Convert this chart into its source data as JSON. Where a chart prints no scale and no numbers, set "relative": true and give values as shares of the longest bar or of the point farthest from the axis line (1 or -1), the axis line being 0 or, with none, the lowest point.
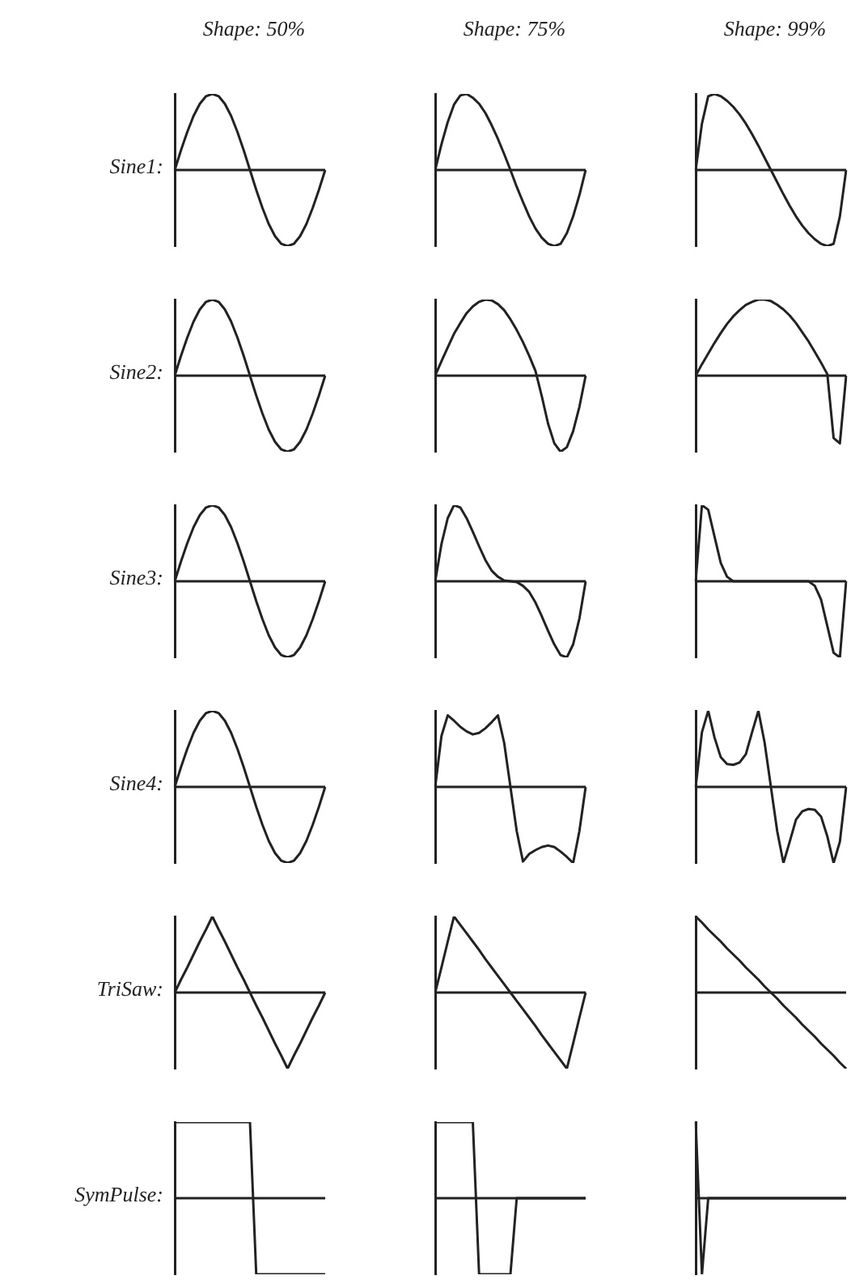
{
  "chart_data": [
    {
      "type": "line",
      "relative": true,
      "title": "Shape: 50%",
      "ylabel": "Sine1:",
      "color": "#222222",
      "categories": [
        null,
        null,
        null,
        null,
        null,
        null,
        null,
        null,
        null,
        null,
        null,
        null,
        null,
        null,
        null,
        null,
        null,
        null,
        null,
        null,
        null,
        null,
        null,
        null,
        null
      ],
      "values": [
        0,
        0.26,
        0.5,
        0.71,
        0.87,
        0.97,
        1,
        0.97,
        0.87,
        0.71,
        0.5,
        0.26,
        0,
        -0.26,
        -0.5,
        -0.71,
        -0.87,
        -0.97,
        -1,
        -0.97,
        -0.87,
        -0.71,
        -0.5,
        -0.26,
        0
      ]
    },
    {
      "type": "line",
      "relative": true,
      "title": "Shape: 75%",
      "color": "#222222",
      "categories": [
        null,
        null,
        null,
        null,
        null,
        null,
        null,
        null,
        null,
        null,
        null,
        null,
        null,
        null,
        null,
        null,
        null,
        null,
        null,
        null,
        null,
        null,
        null,
        null,
        null
      ],
      "values": [
        0,
        0.34,
        0.63,
        0.86,
        0.98,
        1,
        0.95,
        0.87,
        0.75,
        0.59,
        0.41,
        0.21,
        0,
        -0.22,
        -0.42,
        -0.61,
        -0.77,
        -0.89,
        -0.97,
        -1,
        -0.97,
        -0.83,
        -0.61,
        -0.33,
        0
      ]
    },
    {
      "type": "line",
      "relative": true,
      "title": "Shape: 99%",
      "color": "#222222",
      "categories": [
        null,
        null,
        null,
        null,
        null,
        null,
        null,
        null,
        null,
        null,
        null,
        null,
        null,
        null,
        null,
        null,
        null,
        null,
        null,
        null,
        null,
        null,
        null,
        null,
        null
      ],
      "values": [
        0,
        0.61,
        0.97,
        1,
        0.97,
        0.91,
        0.83,
        0.73,
        0.61,
        0.47,
        0.32,
        0.16,
        0,
        -0.16,
        -0.32,
        -0.47,
        -0.61,
        -0.73,
        -0.83,
        -0.91,
        -0.97,
        -1,
        -0.97,
        -0.61,
        0
      ]
    },
    {
      "type": "line",
      "relative": true,
      "ylabel": "Sine2:",
      "color": "#222222",
      "categories": [
        null,
        null,
        null,
        null,
        null,
        null,
        null,
        null,
        null,
        null,
        null,
        null,
        null,
        null,
        null,
        null,
        null,
        null,
        null,
        null,
        null,
        null,
        null,
        null,
        null
      ],
      "values": [
        0,
        0.26,
        0.5,
        0.71,
        0.87,
        0.97,
        1,
        0.97,
        0.87,
        0.71,
        0.5,
        0.26,
        0,
        -0.26,
        -0.5,
        -0.71,
        -0.87,
        -0.97,
        -1,
        -0.97,
        -0.87,
        -0.71,
        -0.5,
        -0.26,
        0
      ]
    },
    {
      "type": "line",
      "relative": true,
      "color": "#222222",
      "categories": [
        null,
        null,
        null,
        null,
        null,
        null,
        null,
        null,
        null,
        null,
        null,
        null,
        null,
        null,
        null,
        null,
        null,
        null,
        null,
        null,
        null,
        null,
        null,
        null,
        null
      ],
      "values": [
        0,
        0.19,
        0.37,
        0.55,
        0.69,
        0.82,
        0.91,
        0.97,
        1,
        0.99,
        0.94,
        0.86,
        0.74,
        0.6,
        0.44,
        0.26,
        0.06,
        -0.27,
        -0.63,
        -0.89,
        -1,
        -0.94,
        -0.73,
        -0.41,
        0
      ]
    },
    {
      "type": "line",
      "relative": true,
      "color": "#222222",
      "categories": [
        null,
        null,
        null,
        null,
        null,
        null,
        null,
        null,
        null,
        null,
        null,
        null,
        null,
        null,
        null,
        null,
        null,
        null,
        null,
        null,
        null,
        null,
        null,
        null,
        null
      ],
      "values": [
        0,
        0.15,
        0.29,
        0.43,
        0.56,
        0.68,
        0.78,
        0.86,
        0.93,
        0.97,
        1,
        1,
        0.98,
        0.93,
        0.87,
        0.79,
        0.69,
        0.57,
        0.45,
        0.31,
        0.17,
        0.02,
        -0.82,
        -0.89,
        0
      ]
    },
    {
      "type": "line",
      "relative": true,
      "ylabel": "Sine3:",
      "color": "#222222",
      "categories": [
        null,
        null,
        null,
        null,
        null,
        null,
        null,
        null,
        null,
        null,
        null,
        null,
        null,
        null,
        null,
        null,
        null,
        null,
        null,
        null,
        null,
        null,
        null,
        null,
        null
      ],
      "values": [
        0,
        0.26,
        0.5,
        0.71,
        0.87,
        0.97,
        1,
        0.97,
        0.87,
        0.71,
        0.5,
        0.26,
        0,
        -0.26,
        -0.5,
        -0.71,
        -0.87,
        -0.97,
        -1,
        -0.97,
        -0.87,
        -0.71,
        -0.5,
        -0.26,
        0
      ]
    },
    {
      "type": "line",
      "relative": true,
      "color": "#222222",
      "categories": [
        null,
        null,
        null,
        null,
        null,
        null,
        null,
        null,
        null,
        null,
        null,
        null,
        null,
        null,
        null,
        null,
        null,
        null,
        null,
        null,
        null,
        null,
        null,
        null,
        null
      ],
      "values": [
        0,
        0.49,
        0.83,
        1,
        0.97,
        0.83,
        0.65,
        0.46,
        0.28,
        0.14,
        0.06,
        0.01,
        0,
        -0.01,
        -0.06,
        -0.14,
        -0.28,
        -0.46,
        -0.65,
        -0.83,
        -0.97,
        -1,
        -0.83,
        -0.49,
        0
      ]
    },
    {
      "type": "line",
      "relative": true,
      "color": "#222222",
      "categories": [
        null,
        null,
        null,
        null,
        null,
        null,
        null,
        null,
        null,
        null,
        null,
        null,
        null,
        null,
        null,
        null,
        null,
        null,
        null,
        null,
        null,
        null,
        null,
        null,
        null
      ],
      "values": [
        0,
        1,
        0.94,
        0.59,
        0.24,
        0.06,
        0,
        0,
        0,
        0,
        0,
        0,
        0,
        0,
        0,
        0,
        0,
        0,
        0,
        -0.06,
        -0.24,
        -0.59,
        -0.94,
        -1,
        0
      ]
    },
    {
      "type": "line",
      "relative": true,
      "ylabel": "Sine4:",
      "color": "#222222",
      "categories": [
        null,
        null,
        null,
        null,
        null,
        null,
        null,
        null,
        null,
        null,
        null,
        null,
        null,
        null,
        null,
        null,
        null,
        null,
        null,
        null,
        null,
        null,
        null,
        null,
        null
      ],
      "values": [
        0,
        0.26,
        0.5,
        0.71,
        0.87,
        0.97,
        1,
        0.97,
        0.87,
        0.71,
        0.5,
        0.26,
        0,
        -0.26,
        -0.5,
        -0.71,
        -0.87,
        -0.97,
        -1,
        -0.97,
        -0.87,
        -0.71,
        -0.5,
        -0.26,
        0
      ]
    },
    {
      "type": "line",
      "relative": true,
      "color": "#222222",
      "categories": [
        null,
        null,
        null,
        null,
        null,
        null,
        null,
        null,
        null,
        null,
        null,
        null,
        null,
        null,
        null,
        null,
        null,
        null,
        null,
        null,
        null,
        null,
        null,
        null,
        null
      ],
      "values": [
        0,
        0.67,
        0.94,
        0.87,
        0.79,
        0.73,
        0.69,
        0.71,
        0.77,
        0.85,
        0.94,
        0.58,
        0,
        -0.58,
        -0.98,
        -0.88,
        -0.83,
        -0.79,
        -0.77,
        -0.79,
        -0.85,
        -0.92,
        -1,
        -0.58,
        0
      ]
    },
    {
      "type": "line",
      "relative": true,
      "color": "#222222",
      "categories": [
        null,
        null,
        null,
        null,
        null,
        null,
        null,
        null,
        null,
        null,
        null,
        null,
        null,
        null,
        null,
        null,
        null,
        null,
        null,
        null,
        null,
        null,
        null,
        null,
        null
      ],
      "values": [
        0,
        0.72,
        1,
        0.65,
        0.39,
        0.3,
        0.29,
        0.32,
        0.43,
        0.72,
        1,
        0.58,
        0,
        -0.58,
        -1,
        -0.72,
        -0.43,
        -0.32,
        -0.29,
        -0.3,
        -0.39,
        -0.65,
        -1,
        -0.72,
        0
      ]
    },
    {
      "type": "line",
      "relative": true,
      "ylabel": "TriSaw:",
      "color": "#222222",
      "categories": [
        null,
        null,
        null,
        null,
        null,
        null,
        null,
        null,
        null,
        null,
        null,
        null,
        null,
        null,
        null,
        null,
        null,
        null,
        null,
        null,
        null,
        null,
        null,
        null,
        null
      ],
      "values": [
        0,
        0.17,
        0.33,
        0.5,
        0.67,
        0.83,
        1,
        0.83,
        0.67,
        0.5,
        0.33,
        0.17,
        0,
        -0.17,
        -0.33,
        -0.5,
        -0.67,
        -0.83,
        -1,
        -0.83,
        -0.67,
        -0.5,
        -0.33,
        -0.17,
        0
      ]
    },
    {
      "type": "line",
      "relative": true,
      "color": "#222222",
      "categories": [
        null,
        null,
        null,
        null,
        null,
        null,
        null,
        null,
        null,
        null,
        null,
        null,
        null,
        null,
        null,
        null,
        null,
        null,
        null,
        null,
        null,
        null,
        null,
        null,
        null
      ],
      "values": [
        0,
        0.33,
        0.67,
        1,
        0.89,
        0.78,
        0.67,
        0.56,
        0.44,
        0.33,
        0.22,
        0.11,
        0,
        -0.11,
        -0.22,
        -0.33,
        -0.44,
        -0.56,
        -0.67,
        -0.78,
        -0.89,
        -1,
        -0.67,
        -0.33,
        0
      ]
    },
    {
      "type": "line",
      "relative": true,
      "color": "#222222",
      "categories": [
        null,
        null,
        null,
        null,
        null,
        null,
        null,
        null,
        null,
        null,
        null,
        null,
        null,
        null,
        null,
        null,
        null,
        null,
        null,
        null,
        null,
        null,
        null,
        null,
        null
      ],
      "values": [
        1,
        0.92,
        0.83,
        0.75,
        0.67,
        0.58,
        0.5,
        0.42,
        0.33,
        0.25,
        0.17,
        0.08,
        0,
        -0.08,
        -0.17,
        -0.25,
        -0.33,
        -0.42,
        -0.5,
        -0.58,
        -0.67,
        -0.75,
        -0.83,
        -0.92,
        -1
      ]
    },
    {
      "type": "line",
      "relative": true,
      "ylabel": "SymPulse:",
      "color": "#222222",
      "categories": [
        null,
        null,
        null,
        null,
        null,
        null,
        null,
        null,
        null,
        null,
        null,
        null,
        null,
        null,
        null,
        null,
        null,
        null,
        null,
        null,
        null,
        null,
        null,
        null,
        null
      ],
      "values": [
        1,
        1,
        1,
        1,
        1,
        1,
        1,
        1,
        1,
        1,
        1,
        1,
        1,
        -1,
        -1,
        -1,
        -1,
        -1,
        -1,
        -1,
        -1,
        -1,
        -1,
        -1,
        -1
      ]
    },
    {
      "type": "line",
      "relative": true,
      "color": "#222222",
      "categories": [
        null,
        null,
        null,
        null,
        null,
        null,
        null,
        null,
        null,
        null,
        null,
        null,
        null,
        null,
        null,
        null,
        null,
        null,
        null,
        null,
        null,
        null,
        null,
        null,
        null
      ],
      "values": [
        1,
        1,
        1,
        1,
        1,
        1,
        1,
        -1,
        -1,
        -1,
        -1,
        -1,
        -1,
        0,
        0,
        0,
        0,
        0,
        0,
        0,
        0,
        0,
        0,
        0,
        0
      ]
    },
    {
      "type": "line",
      "relative": true,
      "color": "#222222",
      "categories": [
        null,
        null,
        null,
        null,
        null,
        null,
        null,
        null,
        null,
        null,
        null,
        null,
        null,
        null,
        null,
        null,
        null,
        null,
        null,
        null,
        null,
        null,
        null,
        null,
        null
      ],
      "values": [
        1,
        -1,
        0,
        0,
        0,
        0,
        0,
        0,
        0,
        0,
        0,
        0,
        0,
        0,
        0,
        0,
        0,
        0,
        0,
        0,
        0,
        0,
        0,
        0,
        0
      ]
    }
  ]
}
